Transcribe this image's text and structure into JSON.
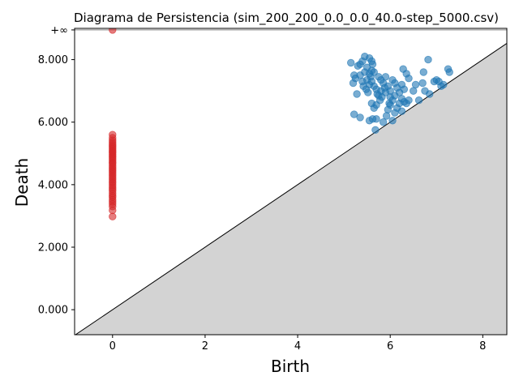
{
  "chart_data": {
    "type": "scatter",
    "title": "Diagrama de Persistencia (sim_200_200_0.0_0.0_40.0-step_5000.csv)",
    "xlabel": "Birth",
    "ylabel": "Death",
    "xlim": [
      -0.82,
      8.52
    ],
    "ylim": [
      -0.8,
      9.0
    ],
    "x_ticks": [
      0,
      2,
      4,
      6,
      8
    ],
    "x_tick_labels": [
      "0",
      "2",
      "4",
      "6",
      "8"
    ],
    "y_ticks": [
      0,
      2,
      4,
      6,
      8
    ],
    "y_tick_labels": [
      "0.000",
      "2.000",
      "4.000",
      "6.000",
      "8.000"
    ],
    "infinity_level": 8.95,
    "infinity_label": "+∞",
    "grid": false,
    "colors": {
      "h0": "#d62728",
      "h1": "#1f77b4",
      "diagonal_fill": "#d3d3d3",
      "infinity_line": "#808080"
    },
    "series": [
      {
        "dimension": 0,
        "points": [
          [
            0,
            8.95
          ],
          [
            0,
            2.98
          ],
          [
            0,
            3.18
          ],
          [
            0,
            3.3
          ],
          [
            0,
            3.38
          ],
          [
            0,
            3.45
          ],
          [
            0,
            3.52
          ],
          [
            0,
            3.6
          ],
          [
            0,
            3.65
          ],
          [
            0,
            3.72
          ],
          [
            0,
            3.8
          ],
          [
            0,
            3.86
          ],
          [
            0,
            3.92
          ],
          [
            0,
            3.98
          ],
          [
            0,
            4.05
          ],
          [
            0,
            4.1
          ],
          [
            0,
            4.16
          ],
          [
            0,
            4.22
          ],
          [
            0,
            4.28
          ],
          [
            0,
            4.34
          ],
          [
            0,
            4.4
          ],
          [
            0,
            4.45
          ],
          [
            0,
            4.5
          ],
          [
            0,
            4.56
          ],
          [
            0,
            4.62
          ],
          [
            0,
            4.68
          ],
          [
            0,
            4.72
          ],
          [
            0,
            4.78
          ],
          [
            0,
            4.83
          ],
          [
            0,
            4.88
          ],
          [
            0,
            4.92
          ],
          [
            0,
            4.97
          ],
          [
            0,
            5.02
          ],
          [
            0,
            5.06
          ],
          [
            0,
            5.1
          ],
          [
            0,
            5.15
          ],
          [
            0,
            5.2
          ],
          [
            0,
            5.25
          ],
          [
            0,
            5.3
          ],
          [
            0,
            5.36
          ],
          [
            0,
            5.42
          ],
          [
            0,
            5.5
          ],
          [
            0,
            5.6
          ]
        ]
      },
      {
        "dimension": 1,
        "points": [
          [
            5.15,
            7.9
          ],
          [
            5.2,
            7.25
          ],
          [
            5.22,
            7.5
          ],
          [
            5.25,
            7.4
          ],
          [
            5.28,
            6.9
          ],
          [
            5.22,
            6.25
          ],
          [
            5.35,
            6.15
          ],
          [
            5.3,
            7.8
          ],
          [
            5.35,
            7.85
          ],
          [
            5.4,
            7.95
          ],
          [
            5.45,
            8.1
          ],
          [
            5.55,
            8.05
          ],
          [
            5.6,
            7.95
          ],
          [
            5.62,
            7.85
          ],
          [
            5.5,
            7.75
          ],
          [
            5.45,
            7.6
          ],
          [
            5.55,
            7.55
          ],
          [
            5.6,
            7.65
          ],
          [
            5.65,
            7.6
          ],
          [
            5.58,
            7.45
          ],
          [
            5.5,
            7.35
          ],
          [
            5.4,
            7.3
          ],
          [
            5.35,
            7.5
          ],
          [
            5.42,
            7.15
          ],
          [
            5.48,
            7.05
          ],
          [
            5.52,
            6.95
          ],
          [
            5.55,
            7.2
          ],
          [
            5.6,
            7.3
          ],
          [
            5.65,
            7.15
          ],
          [
            5.7,
            7.05
          ],
          [
            5.72,
            6.9
          ],
          [
            5.75,
            7.45
          ],
          [
            5.8,
            7.35
          ],
          [
            5.85,
            7.25
          ],
          [
            5.88,
            7.1
          ],
          [
            5.9,
            6.95
          ],
          [
            5.82,
            6.8
          ],
          [
            5.78,
            6.7
          ],
          [
            5.7,
            6.55
          ],
          [
            5.65,
            6.45
          ],
          [
            5.6,
            6.6
          ],
          [
            5.55,
            6.05
          ],
          [
            5.62,
            6.1
          ],
          [
            5.7,
            6.1
          ],
          [
            5.68,
            5.75
          ],
          [
            5.85,
            6.0
          ],
          [
            5.92,
            6.2
          ],
          [
            5.95,
            6.4
          ],
          [
            6.0,
            6.55
          ],
          [
            6.05,
            6.7
          ],
          [
            6.1,
            6.85
          ],
          [
            6.0,
            7.0
          ],
          [
            5.95,
            7.15
          ],
          [
            6.05,
            7.35
          ],
          [
            6.1,
            7.25
          ],
          [
            6.15,
            7.1
          ],
          [
            6.2,
            6.95
          ],
          [
            6.25,
            6.75
          ],
          [
            6.3,
            6.65
          ],
          [
            6.2,
            6.6
          ],
          [
            6.15,
            6.45
          ],
          [
            6.1,
            6.3
          ],
          [
            6.05,
            6.05
          ],
          [
            6.25,
            6.35
          ],
          [
            6.35,
            6.6
          ],
          [
            6.4,
            6.7
          ],
          [
            6.3,
            7.05
          ],
          [
            6.25,
            7.2
          ],
          [
            6.35,
            7.55
          ],
          [
            6.28,
            7.7
          ],
          [
            6.4,
            7.4
          ],
          [
            6.5,
            7.0
          ],
          [
            6.55,
            7.2
          ],
          [
            6.62,
            6.7
          ],
          [
            6.7,
            7.25
          ],
          [
            6.72,
            7.6
          ],
          [
            6.75,
            7.0
          ],
          [
            6.82,
            8.0
          ],
          [
            6.85,
            6.9
          ],
          [
            6.95,
            7.3
          ],
          [
            7.0,
            7.35
          ],
          [
            7.05,
            7.3
          ],
          [
            7.1,
            7.15
          ],
          [
            7.15,
            7.2
          ],
          [
            7.25,
            7.7
          ],
          [
            7.28,
            7.6
          ],
          [
            5.9,
            7.45
          ],
          [
            5.8,
            7.0
          ],
          [
            5.75,
            6.85
          ],
          [
            6.0,
            6.8
          ],
          [
            5.98,
            6.6
          ]
        ]
      }
    ]
  }
}
